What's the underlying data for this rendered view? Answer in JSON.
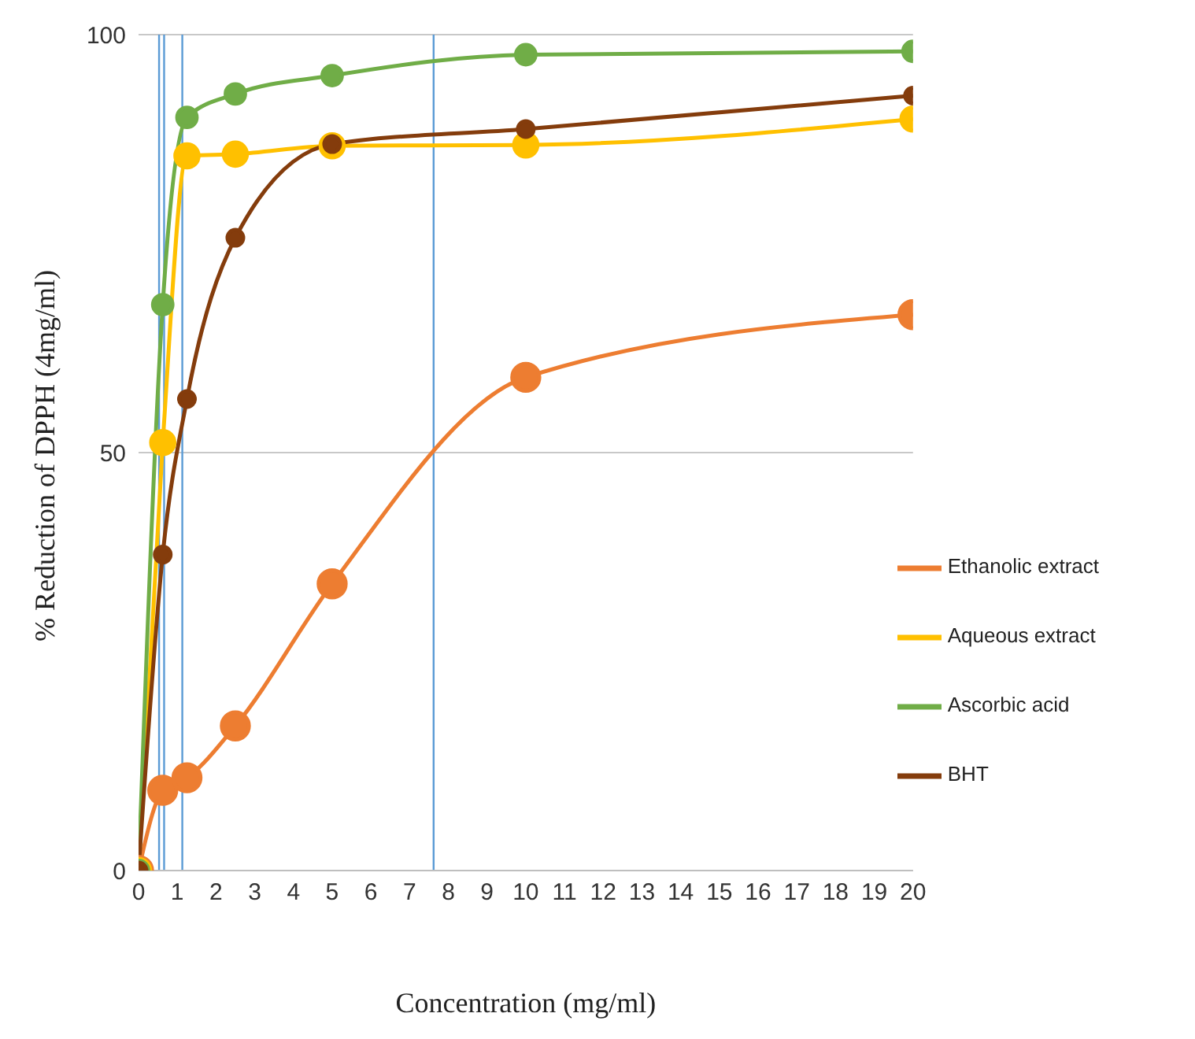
{
  "chart_data": {
    "type": "line",
    "xlabel": "Concentration (mg/ml)",
    "ylabel": "% Reduction of DPPH (4mg/ml)",
    "x": [
      0,
      0.625,
      1.25,
      2.5,
      5,
      10,
      20
    ],
    "series": [
      {
        "name": "Ethanolic extract",
        "color": "#ed7d31",
        "values": [
          0,
          9.6,
          11.1,
          17.3,
          34.3,
          59,
          66.5
        ]
      },
      {
        "name": "Aqueous extract",
        "color": "#ffc000",
        "values": [
          0,
          51.2,
          85.5,
          85.7,
          86.7,
          86.8,
          89.9
        ]
      },
      {
        "name": "Ascorbic acid",
        "color": "#70ad47",
        "values": [
          0,
          67.7,
          90.1,
          92.9,
          95.1,
          97.6,
          98
        ]
      },
      {
        "name": "BHT",
        "color": "#843c0c",
        "values": [
          0,
          37.8,
          56.4,
          75.7,
          86.9,
          88.7,
          92.7
        ]
      }
    ],
    "xlim": [
      0,
      20
    ],
    "xticks": [
      0,
      1,
      2,
      3,
      4,
      5,
      6,
      7,
      8,
      9,
      10,
      11,
      12,
      13,
      14,
      15,
      16,
      17,
      18,
      19,
      20
    ],
    "ylim": [
      0,
      100
    ],
    "yticks": [
      0,
      50,
      100
    ],
    "ref_lines": [
      {
        "axis": "x",
        "value": 0.53,
        "color": "#5b9bd5"
      },
      {
        "axis": "x",
        "value": 0.66,
        "color": "#5b9bd5"
      },
      {
        "axis": "x",
        "value": 1.13,
        "color": "#5b9bd5"
      },
      {
        "axis": "x",
        "value": 7.62,
        "color": "#5b9bd5"
      }
    ],
    "grid": "y",
    "legend": "right",
    "marker": "circle",
    "line_style": "solid"
  }
}
